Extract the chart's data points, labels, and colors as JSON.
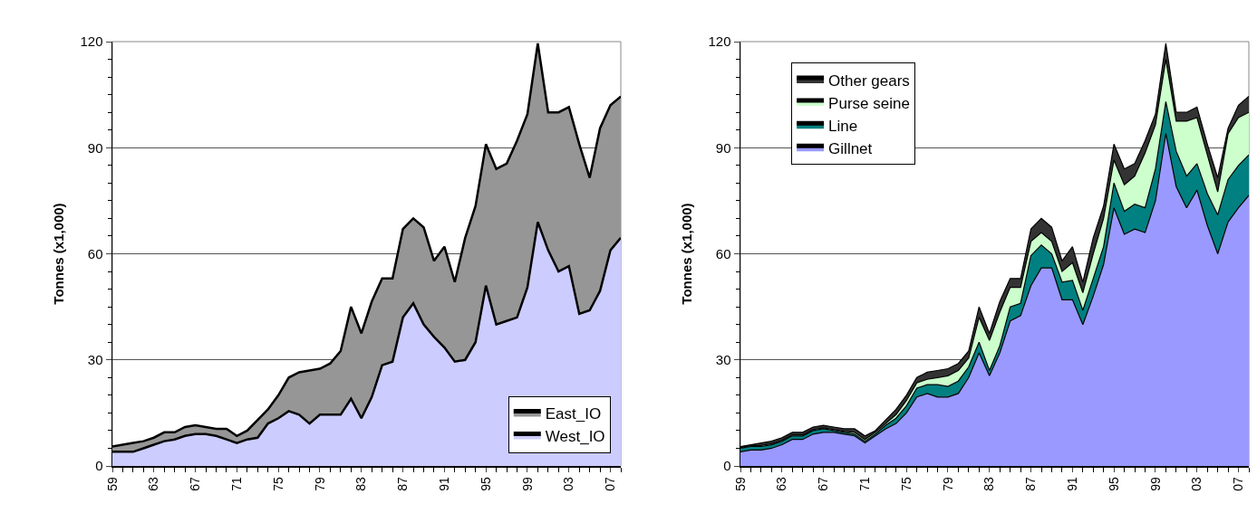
{
  "chart_data": [
    {
      "type": "area",
      "stacked": true,
      "ylabel": "Tonnes (x1,000)",
      "ylim": [
        0,
        120
      ],
      "yticks": [
        0,
        {
          "value": 5,
          "label": null
        },
        {
          "value": 10,
          "label": null
        },
        {
          "value": 15,
          "label": null
        },
        {
          "value": 20,
          "label": null
        },
        {
          "value": 25,
          "label": null
        },
        30,
        {
          "value": 35,
          "label": null
        },
        {
          "value": 40,
          "label": null
        },
        {
          "value": 45,
          "label": null
        },
        {
          "value": 50,
          "label": null
        },
        {
          "value": 55,
          "label": null
        },
        60,
        {
          "value": 65,
          "label": null
        },
        {
          "value": 70,
          "label": null
        },
        {
          "value": 75,
          "label": null
        },
        {
          "value": 80,
          "label": null
        },
        {
          "value": 85,
          "label": null
        },
        90,
        {
          "value": 95,
          "label": null
        },
        {
          "value": 100,
          "label": null
        },
        {
          "value": 105,
          "label": null
        },
        {
          "value": 110,
          "label": null
        },
        {
          "value": 115,
          "label": null
        },
        120
      ],
      "grid": "y",
      "legend": "bottom right",
      "categories": [
        "59",
        null,
        null,
        null,
        "63",
        null,
        null,
        null,
        "67",
        null,
        null,
        null,
        "71",
        null,
        null,
        null,
        "75",
        null,
        null,
        null,
        "79",
        null,
        null,
        null,
        "83",
        null,
        null,
        null,
        "87",
        null,
        null,
        null,
        "91",
        null,
        null,
        null,
        "95",
        null,
        null,
        null,
        "99",
        null,
        null,
        null,
        "03",
        null,
        null,
        null,
        "07",
        null
      ],
      "series": [
        {
          "name": "West_IO",
          "color": "#ccccff",
          "values": [
            4,
            4,
            4,
            5,
            6,
            7,
            7.5,
            8.5,
            9,
            9,
            8.5,
            7.5,
            6.5,
            7.5,
            8,
            12,
            13.5,
            15.5,
            14.5,
            12,
            14.5,
            14.5,
            14.5,
            19,
            13.5,
            19.5,
            28.5,
            29.5,
            42,
            46,
            40,
            36.5,
            33.5,
            29.5,
            30,
            35,
            51,
            40,
            41,
            42,
            50.5,
            69,
            61,
            55,
            56.5,
            43,
            44,
            49.5,
            61,
            64.5
          ]
        },
        {
          "name": "East_IO",
          "color": "#969696",
          "values": [
            1.5,
            2,
            2.5,
            2,
            2,
            2.5,
            2,
            2.5,
            2.5,
            2,
            2,
            3,
            2,
            2.5,
            5,
            4,
            6.5,
            9.5,
            12,
            15,
            13,
            14.5,
            18,
            26,
            24,
            27,
            24.5,
            23.5,
            25,
            24,
            27.5,
            21.5,
            28.5,
            22.5,
            34.5,
            38.5,
            40,
            44,
            44.5,
            50,
            49,
            50.5,
            39,
            45,
            45,
            48,
            37.5,
            46,
            41,
            40
          ]
        }
      ]
    },
    {
      "type": "area",
      "stacked": true,
      "ylabel": "Tonnes (x1,000)",
      "ylim": [
        0,
        120
      ],
      "yticks": [
        0,
        {
          "value": 5,
          "label": null
        },
        {
          "value": 10,
          "label": null
        },
        {
          "value": 15,
          "label": null
        },
        {
          "value": 20,
          "label": null
        },
        {
          "value": 25,
          "label": null
        },
        30,
        {
          "value": 35,
          "label": null
        },
        {
          "value": 40,
          "label": null
        },
        {
          "value": 45,
          "label": null
        },
        {
          "value": 50,
          "label": null
        },
        {
          "value": 55,
          "label": null
        },
        60,
        {
          "value": 65,
          "label": null
        },
        {
          "value": 70,
          "label": null
        },
        {
          "value": 75,
          "label": null
        },
        {
          "value": 80,
          "label": null
        },
        {
          "value": 85,
          "label": null
        },
        90,
        {
          "value": 95,
          "label": null
        },
        {
          "value": 100,
          "label": null
        },
        {
          "value": 105,
          "label": null
        },
        {
          "value": 110,
          "label": null
        },
        {
          "value": 115,
          "label": null
        },
        120
      ],
      "grid": "y",
      "legend": "top left",
      "categories": [
        "59",
        null,
        null,
        null,
        "63",
        null,
        null,
        null,
        "67",
        null,
        null,
        null,
        "71",
        null,
        null,
        null,
        "75",
        null,
        null,
        null,
        "79",
        null,
        null,
        null,
        "83",
        null,
        null,
        null,
        "87",
        null,
        null,
        null,
        "91",
        null,
        null,
        null,
        "95",
        null,
        null,
        null,
        "99",
        null,
        null,
        null,
        "03",
        null,
        null,
        null,
        "07",
        null
      ],
      "series": [
        {
          "name": "Gillnet",
          "color": "#9999ff",
          "values": [
            4,
            4.5,
            4.5,
            5,
            6,
            7.5,
            7.5,
            9,
            9.5,
            9.5,
            9,
            8.5,
            6.5,
            8.5,
            10.5,
            12,
            15,
            19.5,
            20.5,
            19.5,
            19.5,
            20.5,
            25,
            32,
            25.5,
            32,
            41,
            42.5,
            51,
            56,
            56,
            47,
            47,
            40,
            48,
            57,
            73,
            65.5,
            67,
            66,
            75,
            94,
            79,
            73,
            78,
            68,
            60,
            69,
            73,
            76.5
          ]
        },
        {
          "name": "Line",
          "color": "#008080",
          "values": [
            1,
            1,
            1,
            1,
            1,
            1,
            1,
            1,
            1,
            0.5,
            0.5,
            0.5,
            0.5,
            0.5,
            1,
            1.5,
            2,
            2.5,
            2.5,
            3.5,
            3,
            3.5,
            3,
            3,
            1.5,
            2,
            4,
            3.5,
            8.5,
            6.5,
            4,
            5,
            5.5,
            4,
            5,
            5,
            7,
            6.5,
            7,
            7,
            9,
            9,
            10,
            9,
            7.5,
            9,
            11,
            12,
            12,
            11.5
          ]
        },
        {
          "name": "Purse seine",
          "color": "#ccffcc",
          "values": [
            0.2,
            0.2,
            0.3,
            0.3,
            0.3,
            0.3,
            0.3,
            0.3,
            0.3,
            0.3,
            0.3,
            0.5,
            0.5,
            0.5,
            0.5,
            1,
            1.5,
            1.5,
            1.5,
            2,
            3,
            3,
            2.5,
            7,
            8.5,
            9.5,
            5.5,
            4.5,
            4,
            3.5,
            3.5,
            3,
            5,
            5,
            7,
            8,
            6.5,
            7.5,
            8,
            15.5,
            12.5,
            12,
            8.5,
            15.5,
            13,
            11,
            6.5,
            13,
            13.5,
            12
          ]
        },
        {
          "name": "Other gears",
          "color": "#333333",
          "values": [
            0.3,
            0.3,
            0.7,
            0.7,
            0.7,
            0.7,
            0.7,
            0.7,
            0.7,
            0.7,
            0.7,
            1,
            1,
            0.5,
            1,
            1.5,
            1.5,
            1.5,
            2,
            2,
            2,
            2,
            2,
            3,
            2,
            3,
            2.5,
            2.5,
            3.5,
            4,
            4,
            3,
            4.5,
            3,
            4.5,
            3.5,
            4.5,
            4.5,
            3.5,
            3.5,
            3,
            4.5,
            2.5,
            2.5,
            3,
            3,
            4,
            1.5,
            3.5,
            4.5
          ]
        }
      ]
    }
  ]
}
